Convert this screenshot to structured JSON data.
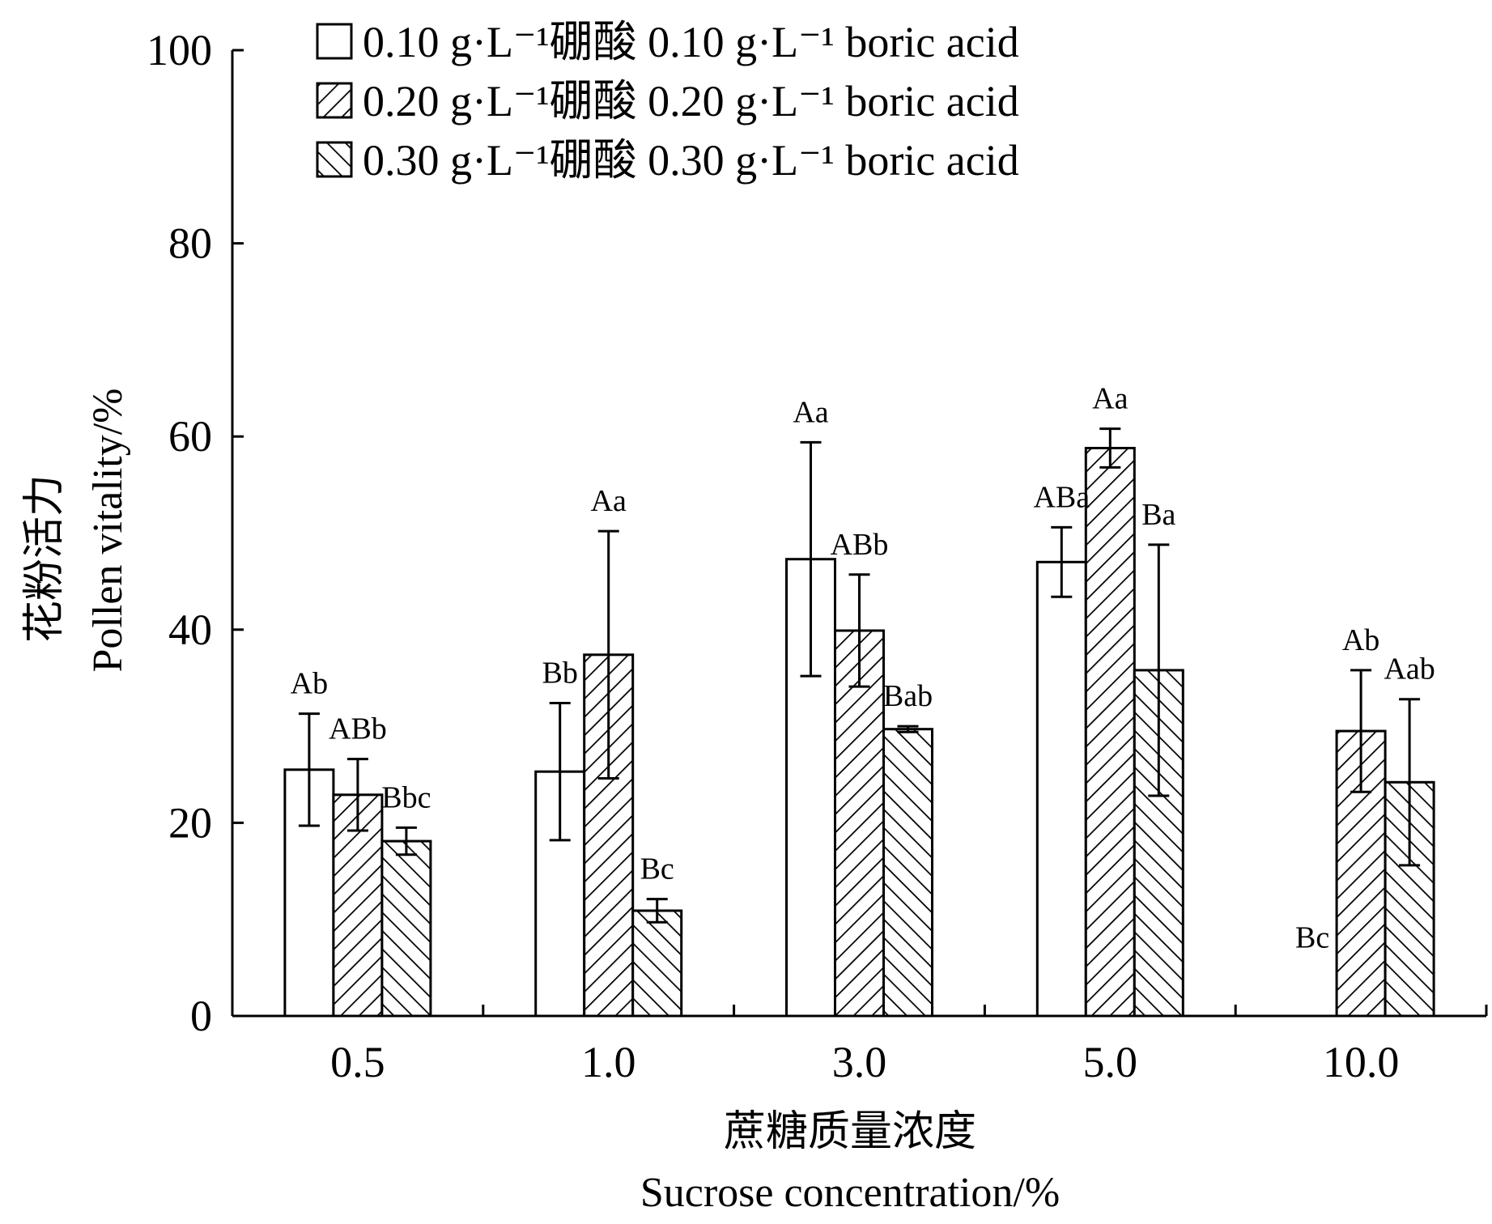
{
  "chart_data": {
    "type": "bar",
    "title": "",
    "xlabel_cn": "蔗糖质量浓度",
    "xlabel_en": "Sucrose concentration/%",
    "ylabel_cn": "花粉活力",
    "ylabel_en": "Pollen vitality/%",
    "categories": [
      "0.5",
      "1.0",
      "3.0",
      "5.0",
      "10.0"
    ],
    "ylim": [
      0,
      100
    ],
    "yticks": [
      "0",
      "20",
      "40",
      "60",
      "80",
      "100"
    ],
    "legend_position": "top",
    "series": [
      {
        "name": "0.10 g·L⁻¹硼酸 0.10 g·L⁻¹ boric acid",
        "pattern": "white",
        "values": [
          25.5,
          25.3,
          47.3,
          47.0,
          0
        ],
        "errors": [
          5.8,
          7.1,
          12.1,
          3.6,
          0
        ],
        "labels": [
          "Ab",
          "Bb",
          "Aa",
          "ABa",
          "Bc"
        ]
      },
      {
        "name": "0.20 g·L⁻¹硼酸 0.20 g·L⁻¹ boric acid",
        "pattern": "hatch-forward",
        "values": [
          22.9,
          37.4,
          39.9,
          58.8,
          29.5
        ],
        "errors": [
          3.7,
          12.8,
          5.8,
          2.0,
          6.3
        ],
        "labels": [
          "ABb",
          "Aa",
          "ABb",
          "Aa",
          "Ab"
        ]
      },
      {
        "name": "0.30 g·L⁻¹硼酸 0.30 g·L⁻¹ boric acid",
        "pattern": "hatch-backward",
        "values": [
          18.1,
          10.9,
          29.7,
          35.8,
          24.2
        ],
        "errors": [
          1.4,
          1.2,
          0.3,
          13.0,
          8.6
        ],
        "labels": [
          "Bbc",
          "Bc",
          "Bab",
          "Ba",
          "Aab"
        ]
      }
    ]
  }
}
